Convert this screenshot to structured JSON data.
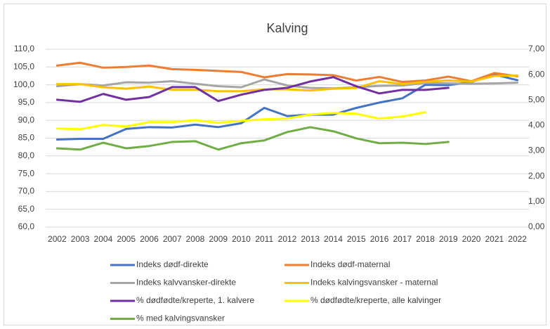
{
  "chart_data": {
    "type": "line",
    "title": "Kalving",
    "categories": [
      "2002",
      "2003",
      "2004",
      "2005",
      "2006",
      "2007",
      "2008",
      "2009",
      "2010",
      "2011",
      "2012",
      "2013",
      "2014",
      "2015",
      "2016",
      "2017",
      "2018",
      "2019",
      "2020",
      "2021",
      "2022"
    ],
    "ylim": [
      60,
      110
    ],
    "yticks": [
      {
        "value": 60,
        "label": "60,0"
      },
      {
        "value": 65,
        "label": "65,0"
      },
      {
        "value": 70,
        "label": "70,0"
      },
      {
        "value": 75,
        "label": "75,0"
      },
      {
        "value": 80,
        "label": "80,0"
      },
      {
        "value": 85,
        "label": "85,0"
      },
      {
        "value": 90,
        "label": "90,0"
      },
      {
        "value": 95,
        "label": "95,0"
      },
      {
        "value": 100,
        "label": "100,0"
      },
      {
        "value": 105,
        "label": "105,0"
      },
      {
        "value": 110,
        "label": "110,0"
      }
    ],
    "y2lim": [
      0,
      7
    ],
    "y2ticks": [
      {
        "value": 0,
        "label": "0,00"
      },
      {
        "value": 1,
        "label": "1,00"
      },
      {
        "value": 2,
        "label": "2,00"
      },
      {
        "value": 3,
        "label": "3,00"
      },
      {
        "value": 4,
        "label": "4,00"
      },
      {
        "value": 5,
        "label": "5,00"
      },
      {
        "value": 6,
        "label": "6,00"
      },
      {
        "value": 7,
        "label": "7,00"
      }
    ],
    "grid": true,
    "legend": "bottom",
    "series": [
      {
        "name": "Indeks dødf-direkte",
        "color": "#4472c4",
        "values": [
          84.6,
          84.8,
          84.8,
          87.6,
          88.1,
          88.0,
          88.8,
          88.1,
          89.2,
          93.5,
          91.2,
          91.6,
          91.6,
          93.5,
          95.0,
          96.2,
          100.0,
          99.9,
          100.8,
          102.9,
          101.3
        ]
      },
      {
        "name": "Indeks dødf-maternal",
        "color": "#ed7d31",
        "values": [
          105.4,
          106.2,
          104.8,
          105.0,
          105.4,
          104.4,
          104.2,
          103.9,
          103.6,
          102.1,
          103.0,
          102.9,
          102.7,
          101.2,
          102.2,
          100.8,
          101.2,
          102.3,
          101.0,
          103.3,
          102.4
        ]
      },
      {
        "name": "Indeks kalvvansker-direkte",
        "color": "#a5a5a5",
        "values": [
          99.6,
          100.2,
          99.8,
          100.7,
          100.6,
          101.0,
          100.3,
          99.6,
          99.3,
          101.5,
          99.8,
          99.1,
          99.0,
          99.3,
          99.7,
          99.8,
          100.5,
          100.4,
          100.3,
          100.4,
          100.6
        ]
      },
      {
        "name": "Indeks kalvingsvansker - maternal",
        "color": "#ffc000",
        "values": [
          100.2,
          100.2,
          99.3,
          98.9,
          99.5,
          98.6,
          98.6,
          98.2,
          98.2,
          98.7,
          98.7,
          98.4,
          98.9,
          99.1,
          101.0,
          100.2,
          100.8,
          101.2,
          100.9,
          102.5,
          102.6
        ]
      },
      {
        "name": "% dødfødte/kreperte, 1. kalvere",
        "color": "#7030a0",
        "axis": "y2",
        "values": [
          5.01,
          4.93,
          5.24,
          5.01,
          5.12,
          5.51,
          5.51,
          4.96,
          5.21,
          5.4,
          5.48,
          5.73,
          5.9,
          5.54,
          5.26,
          5.4,
          5.4,
          5.48,
          null,
          null,
          null
        ]
      },
      {
        "name": "% dødfødte/kreperte, alle kalvinger",
        "color": "#ffff00",
        "axis": "y2",
        "values": [
          3.88,
          3.85,
          4.02,
          3.96,
          4.13,
          4.13,
          4.21,
          4.1,
          4.18,
          4.24,
          4.27,
          4.43,
          4.49,
          4.46,
          4.27,
          4.35,
          4.52,
          null,
          null,
          null,
          null
        ]
      },
      {
        "name": "% med kalvingsvansker",
        "color": "#70ad47",
        "axis": "y2",
        "values": [
          3.1,
          3.05,
          3.32,
          3.1,
          3.19,
          3.35,
          3.38,
          3.05,
          3.3,
          3.41,
          3.74,
          3.93,
          3.77,
          3.49,
          3.3,
          3.32,
          3.27,
          3.35,
          null,
          null,
          null
        ]
      }
    ]
  }
}
